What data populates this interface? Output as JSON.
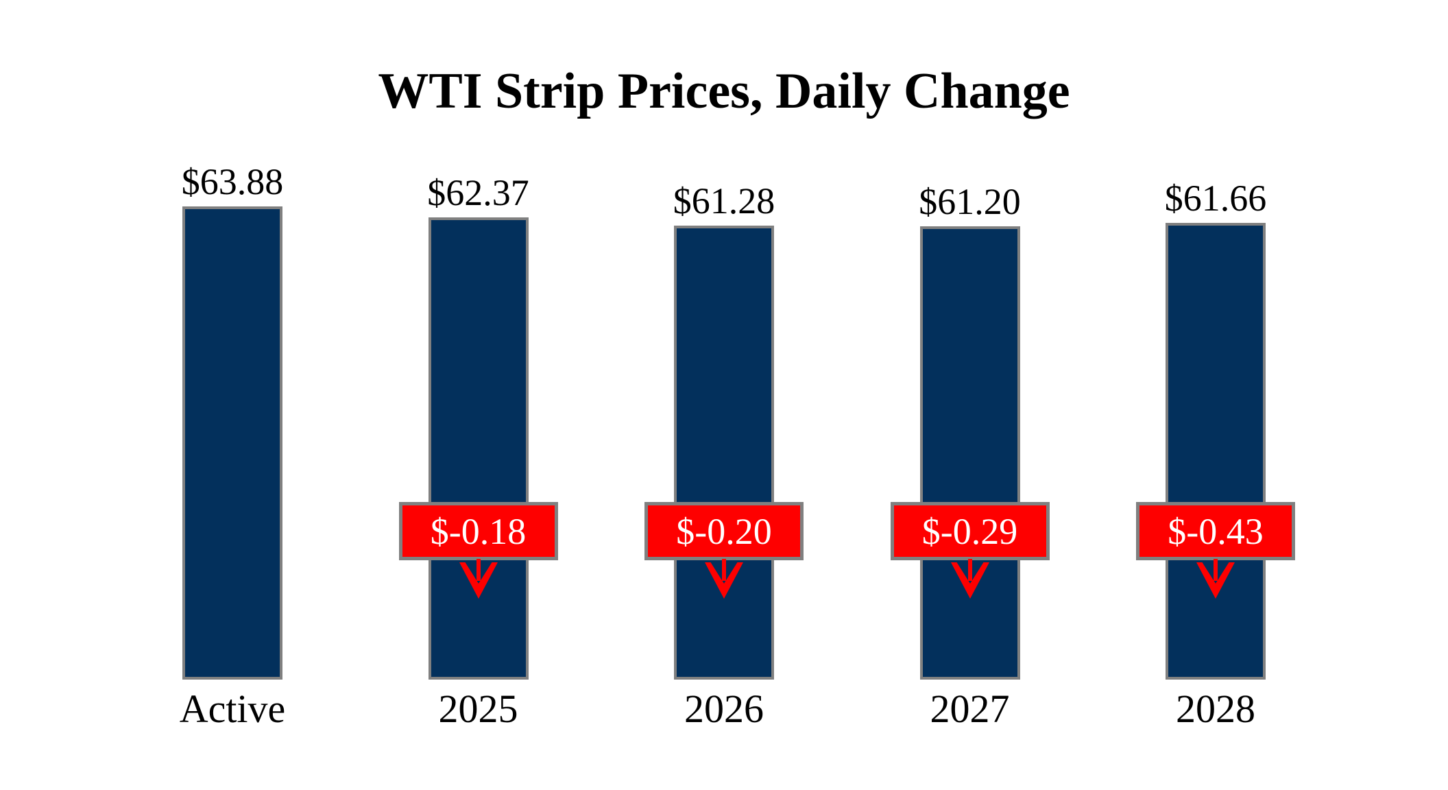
{
  "chart_data": {
    "type": "bar",
    "title": "WTI Strip Prices, Daily Change",
    "categories": [
      "Active",
      "2025",
      "2026",
      "2027",
      "2028"
    ],
    "values": [
      63.88,
      62.37,
      61.28,
      61.2,
      61.66
    ],
    "daily_changes": [
      null,
      -0.18,
      -0.2,
      -0.29,
      -0.43
    ],
    "bars": [
      {
        "category": "Active",
        "value": 63.88,
        "price_label": "$63.88",
        "change": null,
        "change_label": ""
      },
      {
        "category": "2025",
        "value": 62.37,
        "price_label": "$62.37",
        "change": -0.18,
        "change_label": "$-0.18"
      },
      {
        "category": "2026",
        "value": 61.28,
        "price_label": "$61.28",
        "change": -0.2,
        "change_label": "$-0.20"
      },
      {
        "category": "2027",
        "value": 61.2,
        "price_label": "$61.20",
        "change": -0.29,
        "change_label": "$-0.29"
      },
      {
        "category": "2028",
        "value": 61.66,
        "price_label": "$61.66",
        "change": -0.43,
        "change_label": "$-0.43"
      }
    ],
    "xlabel": "",
    "ylabel": "",
    "ylim": [
      0,
      66
    ],
    "grid": false,
    "legend": "none"
  },
  "colors": {
    "background": "#FFFFFF",
    "bar_fill": "#03305C",
    "bar_border": "#808080",
    "badge_fill": "#FE0000",
    "badge_border": "#808080",
    "badge_text": "#FFFFFF",
    "arrow": "#FE0000",
    "text": "#000000"
  }
}
